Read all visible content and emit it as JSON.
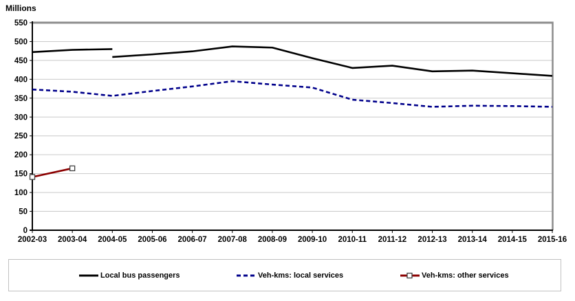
{
  "unit_label": "Millions",
  "chart_data": {
    "type": "line",
    "title": "",
    "ylabel": "Millions",
    "xlabel": "",
    "ylim": [
      0,
      550
    ],
    "ytick_step": 50,
    "grid": "horizontal",
    "legend_position": "bottom",
    "categories": [
      "2002-03",
      "2003-04",
      "2004-05",
      "2005-06",
      "2006-07",
      "2007-08",
      "2008-09",
      "2009-10",
      "2010-11",
      "2011-12",
      "2012-13",
      "2013-14",
      "2014-15",
      "2015-16"
    ],
    "series": [
      {
        "name": "Local bus passengers",
        "color": "#000000",
        "dash": "solid",
        "marker": "none",
        "note": "series break at 2004-05",
        "segments": [
          {
            "start_index": 0,
            "values": [
              472,
              478,
              480
            ]
          },
          {
            "start_index": 2,
            "values": [
              459,
              466,
              474,
              487,
              484,
              456,
              430,
              436,
              421,
              423,
              416,
              409
            ]
          }
        ]
      },
      {
        "name": "Veh-kms: local services",
        "color": "#00008B",
        "dash": "dashed",
        "marker": "none",
        "segments": [
          {
            "start_index": 0,
            "values": [
              373,
              367,
              356,
              369,
              381,
              395,
              386,
              378,
              346,
              337,
              327,
              330,
              329,
              327
            ]
          }
        ]
      },
      {
        "name": "Veh-kms: other services",
        "color": "#8B0000",
        "dash": "solid",
        "marker": "square",
        "marker_fill": "#FFFFFF",
        "segments": [
          {
            "start_index": 0,
            "values": [
              141,
              164
            ]
          }
        ]
      }
    ]
  },
  "colors": {
    "background": "#FFFFFF",
    "grid": "#C9C9C9",
    "plot_border": "#8C8C8C",
    "axis": "#000000",
    "tick_label": "#000000",
    "legend_border": "#C0C0C0",
    "marker_border": "#404040"
  }
}
